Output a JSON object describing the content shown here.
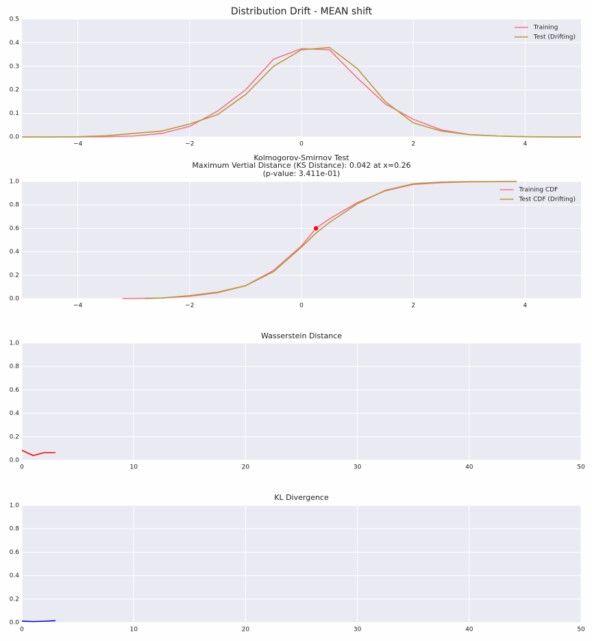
{
  "chart_data": [
    {
      "type": "line",
      "title": "Distribution Drift - MEAN shift",
      "x": [
        -5,
        -4.5,
        -4,
        -3.5,
        -3,
        -2.5,
        -2,
        -1.5,
        -1,
        -0.5,
        0,
        0.5,
        1,
        1.5,
        2,
        2.5,
        3,
        3.5,
        4,
        4.5,
        5
      ],
      "series": [
        {
          "name": "Training",
          "color": "#f77189",
          "values": [
            0,
            0,
            0,
            0.001,
            0.004,
            0.015,
            0.045,
            0.11,
            0.2,
            0.33,
            0.375,
            0.37,
            0.25,
            0.14,
            0.075,
            0.03,
            0.01,
            0.004,
            0.001,
            0,
            0
          ]
        },
        {
          "name": "Test (Drifting)",
          "color": "#bb9832",
          "values": [
            0,
            0,
            0.001,
            0.005,
            0.015,
            0.025,
            0.055,
            0.095,
            0.18,
            0.3,
            0.37,
            0.38,
            0.29,
            0.15,
            0.06,
            0.025,
            0.01,
            0.004,
            0.001,
            0,
            0
          ]
        }
      ],
      "xlim": [
        -5,
        5
      ],
      "xticks": [
        {
          "value": -4,
          "label": "−4"
        },
        {
          "value": -2,
          "label": "−2"
        },
        0,
        2,
        4
      ],
      "ylim": [
        0,
        0.5
      ],
      "yticks": [
        {
          "value": 0,
          "label": "0.0"
        },
        0.1,
        0.2,
        0.3,
        0.4,
        0.5
      ],
      "grid": true,
      "legend": "upper right"
    },
    {
      "type": "line",
      "title": [
        "Kolmogorov-Smirnov Test",
        "Maximum Vertial Distance (KS Distance): 0.042 at x=0.26",
        "(p-value: 3.411e-01)"
      ],
      "series": [
        {
          "name": "Training CDF",
          "color": "#f77189",
          "x": [
            -3.2,
            -2.5,
            -2,
            -1.5,
            -1,
            -0.5,
            0,
            0.26,
            0.5,
            1,
            1.5,
            2,
            2.5,
            3,
            3.85
          ],
          "values": [
            0,
            0.005,
            0.02,
            0.05,
            0.11,
            0.24,
            0.45,
            0.6,
            0.68,
            0.82,
            0.92,
            0.975,
            0.99,
            0.997,
            1.0
          ]
        },
        {
          "name": "Test CDF (Drifting)",
          "color": "#bb9832",
          "x": [
            -2.8,
            -2.5,
            -2,
            -1.5,
            -1,
            -0.5,
            0,
            0.26,
            0.5,
            1,
            1.5,
            2,
            2.5,
            3,
            3.85
          ],
          "values": [
            0,
            0.005,
            0.025,
            0.055,
            0.11,
            0.23,
            0.44,
            0.56,
            0.65,
            0.81,
            0.925,
            0.98,
            0.995,
            0.999,
            1.0
          ]
        }
      ],
      "highlight": {
        "x": 0.26,
        "y": 0.6,
        "color": "#ff0000"
      },
      "xlim": [
        -5,
        5
      ],
      "xticks": [
        {
          "value": -4,
          "label": "−4"
        },
        {
          "value": -2,
          "label": "−2"
        },
        0,
        2,
        4
      ],
      "ylim": [
        0,
        1
      ],
      "yticks": [
        {
          "value": 0,
          "label": "0.0"
        },
        0.2,
        0.4,
        0.6,
        0.8,
        {
          "value": 1,
          "label": "1.0"
        }
      ],
      "grid": true,
      "legend": "upper right"
    },
    {
      "type": "line",
      "title": "Wasserstein Distance",
      "x": [
        0,
        1,
        2,
        3
      ],
      "series": [
        {
          "color": "#ff0000",
          "values": [
            0.085,
            0.04,
            0.065,
            0.065
          ]
        }
      ],
      "xlim": [
        0,
        50
      ],
      "xticks": [
        0,
        10,
        20,
        30,
        40,
        50
      ],
      "ylim": [
        0,
        1
      ],
      "yticks": [
        {
          "value": 0,
          "label": "0.0"
        },
        0.2,
        0.4,
        0.6,
        0.8,
        {
          "value": 1,
          "label": "1.0"
        }
      ],
      "grid": true
    },
    {
      "type": "line",
      "title": "KL Divergence",
      "x": [
        0,
        1,
        2,
        3
      ],
      "series": [
        {
          "color": "#0000ff",
          "values": [
            0.012,
            0.008,
            0.011,
            0.016
          ]
        }
      ],
      "xlim": [
        0,
        50
      ],
      "xticks": [
        0,
        10,
        20,
        30,
        40,
        50
      ],
      "ylim": [
        0,
        1
      ],
      "yticks": [
        {
          "value": 0,
          "label": "0.0"
        },
        0.2,
        0.4,
        0.6,
        0.8,
        {
          "value": 1,
          "label": "1.0"
        }
      ],
      "grid": true
    }
  ]
}
